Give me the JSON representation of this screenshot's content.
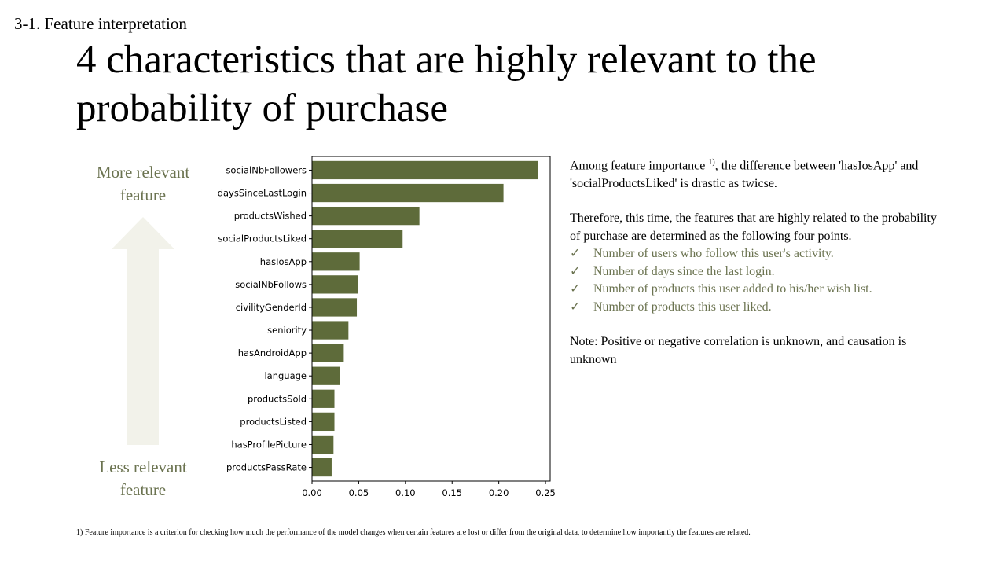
{
  "header": {
    "section": "3-1. Feature interpretation",
    "title": "4 characteristics that are highly relevant to the probability of  purchase"
  },
  "arrow": {
    "top_label": "More relevant feature",
    "bottom_label": "Less relevant feature"
  },
  "text": {
    "intro_prefix": "Among feature importance ",
    "intro_sup": "1)",
    "intro_suffix": ", the difference between 'hasIosApp' and 'socialProductsLiked' is drastic as twicse.",
    "therefore": "Therefore, this time, the features that are highly related to the probability of purchase are determined as the following four points.",
    "checks": [
      "Number of users who follow this user's activity.",
      "Number of days since the last login.",
      "Number of products this user added to his/her wish list.",
      "Number of products this user liked."
    ],
    "note": "Note: Positive or negative correlation is unknown, and causation is unknown"
  },
  "footnote": "1) Feature importance is a criterion for checking how much the performance of the model changes when certain features are lost or differ from the original data, to determine how importantly the features are related.",
  "colors": {
    "bar": "#5e6b3a",
    "accent_text": "#6b7350",
    "arrow": "#f2f2ea"
  },
  "chart_data": {
    "type": "bar",
    "orientation": "horizontal",
    "categories": [
      "socialNbFollowers",
      "daysSinceLastLogin",
      "productsWished",
      "socialProductsLiked",
      "hasIosApp",
      "socialNbFollows",
      "civilityGenderId",
      "seniority",
      "hasAndroidApp",
      "language",
      "productsSold",
      "productsListed",
      "hasProfilePicture",
      "productsPassRate"
    ],
    "values": [
      0.242,
      0.205,
      0.115,
      0.097,
      0.051,
      0.049,
      0.048,
      0.039,
      0.034,
      0.03,
      0.024,
      0.024,
      0.023,
      0.021
    ],
    "xlim": [
      0,
      0.255
    ],
    "xticks": [
      "0.00",
      "0.05",
      "0.10",
      "0.15",
      "0.20",
      "0.25"
    ],
    "title": "",
    "xlabel": "",
    "ylabel": ""
  }
}
